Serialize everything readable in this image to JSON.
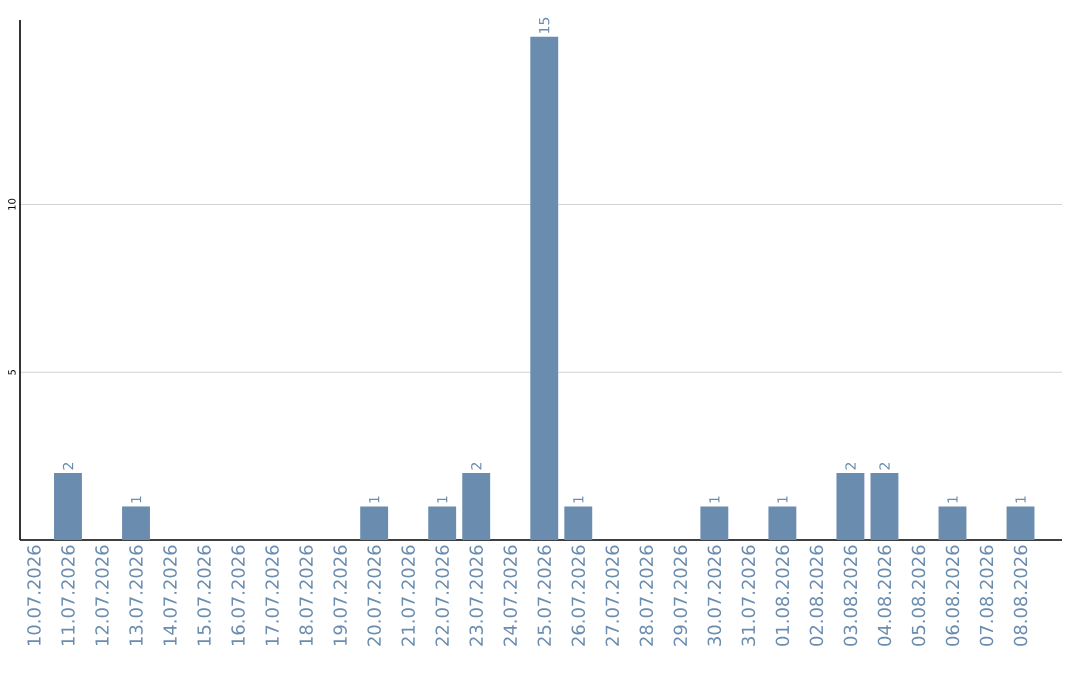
{
  "chart_data": {
    "type": "bar",
    "categories": [
      "10.07.2026",
      "11.07.2026",
      "12.07.2026",
      "13.07.2026",
      "14.07.2026",
      "15.07.2026",
      "16.07.2026",
      "17.07.2026",
      "18.07.2026",
      "19.07.2026",
      "20.07.2026",
      "21.07.2026",
      "22.07.2026",
      "23.07.2026",
      "24.07.2026",
      "25.07.2026",
      "26.07.2026",
      "27.07.2026",
      "28.07.2026",
      "29.07.2026",
      "30.07.2026",
      "31.07.2026",
      "01.08.2026",
      "02.08.2026",
      "03.08.2026",
      "04.08.2026",
      "05.08.2026",
      "06.08.2026",
      "07.08.2026",
      "08.08.2026"
    ],
    "values": [
      0,
      2,
      0,
      1,
      0,
      0,
      0,
      0,
      0,
      0,
      1,
      0,
      1,
      2,
      0,
      15,
      1,
      0,
      0,
      0,
      1,
      0,
      1,
      0,
      2,
      2,
      0,
      1,
      0,
      1
    ],
    "value_labels": [
      null,
      "2",
      null,
      "1",
      null,
      null,
      null,
      null,
      null,
      null,
      "1",
      null,
      "1",
      "2",
      null,
      "15",
      "1",
      null,
      null,
      null,
      "1",
      null,
      "1",
      null,
      "2",
      "2",
      null,
      "1",
      null,
      "1"
    ],
    "color": "#6a8caf",
    "ylim": [
      0,
      15.5
    ],
    "yticks": [
      5,
      10
    ],
    "grid": "y"
  }
}
